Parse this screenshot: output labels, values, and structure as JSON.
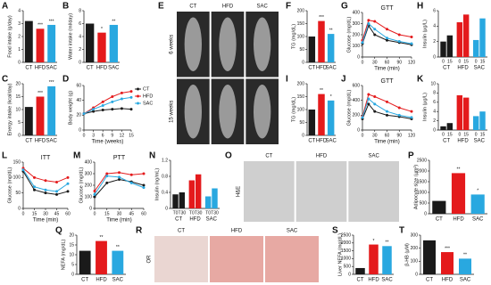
{
  "chart_data": [
    {
      "type": "bar",
      "label": "A",
      "ylabel": "Food intake (g/day)",
      "categories": [
        "CT",
        "HFD",
        "SAC"
      ],
      "values": [
        3.2,
        2.6,
        2.9
      ],
      "stars": [
        null,
        "***",
        "***"
      ],
      "colors": [
        "#1a1a1a",
        "#e41a1c",
        "#29a8e0"
      ],
      "ylim": [
        0,
        4
      ],
      "yticks": [
        0,
        1,
        2,
        3,
        4
      ]
    },
    {
      "type": "bar",
      "label": "B",
      "ylabel": "Water intake (ml/day)",
      "categories": [
        "CT",
        "HFD",
        "SAC"
      ],
      "values": [
        6,
        4.6,
        5.8
      ],
      "stars": [
        null,
        "*",
        "**"
      ],
      "colors": [
        "#1a1a1a",
        "#e41a1c",
        "#29a8e0"
      ],
      "ylim": [
        0,
        8
      ],
      "yticks": [
        0,
        2,
        4,
        6,
        8
      ]
    },
    {
      "type": "image",
      "label": "E",
      "columns": [
        "CT",
        "HFD",
        "SAC"
      ],
      "rows": [
        "6 weeks",
        "15 weeks"
      ]
    },
    {
      "type": "bar",
      "label": "F",
      "ylabel": "TG (mg/dL)",
      "categories": [
        "CT",
        "HFD",
        "SAC"
      ],
      "values": [
        100,
        160,
        110
      ],
      "stars": [
        null,
        "***",
        "**"
      ],
      "colors": [
        "#1a1a1a",
        "#e41a1c",
        "#29a8e0"
      ],
      "ylim": [
        0,
        200
      ],
      "yticks": [
        0,
        50,
        100,
        150,
        200
      ]
    },
    {
      "type": "line",
      "label": "G",
      "title": "GTT",
      "ylabel": "Glucose (mg/dL)",
      "xlabel": "Time (min)",
      "x": [
        0,
        15,
        30,
        60,
        90,
        120
      ],
      "xlim": [
        0,
        120
      ],
      "xticks": [
        0,
        30,
        60,
        90,
        120
      ],
      "ylim": [
        0,
        400
      ],
      "yticks": [
        0,
        100,
        200,
        300,
        400
      ],
      "series": [
        {
          "color": "#1a1a1a",
          "values": [
            120,
            280,
            200,
            150,
            130,
            110
          ]
        },
        {
          "color": "#e41a1c",
          "values": [
            150,
            330,
            320,
            250,
            200,
            180
          ]
        },
        {
          "color": "#29a8e0",
          "values": [
            130,
            300,
            250,
            170,
            140,
            120
          ]
        }
      ]
    },
    {
      "type": "grouped",
      "label": "H",
      "ylabel": "Insulin (μg/L)",
      "groups": [
        "CT",
        "HFD",
        "SAC"
      ],
      "subcategories": [
        "0",
        "15"
      ],
      "values": [
        [
          2,
          2.8
        ],
        [
          4.5,
          5.5
        ],
        [
          2.2,
          5
        ]
      ],
      "colors": [
        "#1a1a1a",
        "#e41a1c",
        "#29a8e0"
      ],
      "ylim": [
        0,
        6
      ],
      "yticks": [
        0,
        2,
        4,
        6
      ]
    },
    {
      "type": "bar",
      "label": "C",
      "ylabel": "Energy intake (kcal/day)",
      "categories": [
        "CT",
        "HFD",
        "SAC"
      ],
      "values": [
        11,
        15,
        19
      ],
      "stars": [
        null,
        "***",
        "***"
      ],
      "colors": [
        "#1a1a1a",
        "#e41a1c",
        "#29a8e0"
      ],
      "ylim": [
        0,
        20
      ],
      "yticks": [
        0,
        5,
        10,
        15,
        20
      ]
    },
    {
      "type": "line",
      "label": "D",
      "ylabel": "Body weight (g)",
      "xlabel": "Time (weeks)",
      "legend": "right",
      "x": [
        0,
        3,
        6,
        9,
        12,
        15
      ],
      "xlim": [
        0,
        15
      ],
      "xticks": [
        0,
        3,
        6,
        9,
        12,
        15
      ],
      "ylim": [
        0,
        60
      ],
      "yticks": [
        0,
        20,
        40,
        60
      ],
      "series": [
        {
          "name": "CT",
          "color": "#1a1a1a",
          "values": [
            22,
            25,
            27,
            28,
            29,
            28
          ]
        },
        {
          "name": "HFD",
          "color": "#e41a1c",
          "values": [
            22,
            30,
            38,
            45,
            50,
            52
          ]
        },
        {
          "name": "SAC",
          "color": "#29a8e0",
          "values": [
            22,
            28,
            33,
            38,
            42,
            44
          ]
        }
      ]
    },
    {
      "type": "bar",
      "label": "I",
      "ylabel": "TG (mg/dL)",
      "categories": [
        "CT",
        "HFD",
        "SAC"
      ],
      "values": [
        100,
        160,
        135
      ],
      "stars": [
        null,
        "**",
        "*"
      ],
      "colors": [
        "#1a1a1a",
        "#e41a1c",
        "#29a8e0"
      ],
      "ylim": [
        0,
        200
      ],
      "yticks": [
        0,
        50,
        100,
        150,
        200
      ]
    },
    {
      "type": "line",
      "label": "J",
      "title": "GTT",
      "ylabel": "Glucose (mg/dL)",
      "xlabel": "Time (min)",
      "x": [
        0,
        15,
        30,
        60,
        90,
        120
      ],
      "xlim": [
        0,
        120
      ],
      "xticks": [
        0,
        30,
        60,
        90,
        120
      ],
      "ylim": [
        0,
        600
      ],
      "yticks": [
        0,
        200,
        400,
        600
      ],
      "series": [
        {
          "color": "#1a1a1a",
          "values": [
            150,
            350,
            250,
            200,
            180,
            150
          ]
        },
        {
          "color": "#e41a1c",
          "values": [
            180,
            480,
            450,
            380,
            300,
            250
          ]
        },
        {
          "color": "#29a8e0",
          "values": [
            170,
            420,
            350,
            250,
            200,
            170
          ]
        }
      ]
    },
    {
      "type": "grouped",
      "label": "K",
      "ylabel": "Insulin (μg/L)",
      "groups": [
        "CT",
        "HFD",
        "SAC"
      ],
      "subcategories": [
        "0",
        "15"
      ],
      "values": [
        [
          0.8,
          1.5
        ],
        [
          7.5,
          7
        ],
        [
          3,
          4
        ]
      ],
      "colors": [
        "#1a1a1a",
        "#e41a1c",
        "#29a8e0"
      ],
      "ylim": [
        0,
        10
      ],
      "yticks": [
        0,
        2,
        4,
        6,
        8,
        10
      ]
    },
    {
      "type": "line",
      "label": "L",
      "title": "ITT",
      "ylabel": "Glucose (mg/dL)",
      "xlabel": "Time (min)",
      "x": [
        0,
        15,
        30,
        45,
        60
      ],
      "xlim": [
        0,
        60
      ],
      "xticks": [
        0,
        15,
        30,
        45,
        60
      ],
      "ylim": [
        0,
        150
      ],
      "yticks": [
        0,
        50,
        100,
        150
      ],
      "series": [
        {
          "color": "#1a1a1a",
          "values": [
            120,
            60,
            50,
            45,
            55
          ]
        },
        {
          "color": "#e41a1c",
          "values": [
            130,
            100,
            90,
            85,
            100
          ]
        },
        {
          "color": "#29a8e0",
          "values": [
            125,
            70,
            60,
            55,
            80
          ]
        }
      ]
    },
    {
      "type": "line",
      "label": "M",
      "title": "PTT",
      "ylabel": "Glucose (mg/dL)",
      "xlabel": "Time (min)",
      "x": [
        0,
        15,
        30,
        45,
        60
      ],
      "xlim": [
        0,
        60
      ],
      "xticks": [
        0,
        15,
        30,
        45,
        60
      ],
      "ylim": [
        0,
        400
      ],
      "yticks": [
        0,
        100,
        200,
        300,
        400
      ],
      "series": [
        {
          "color": "#1a1a1a",
          "values": [
            100,
            220,
            250,
            230,
            200
          ]
        },
        {
          "color": "#e41a1c",
          "values": [
            150,
            300,
            310,
            290,
            300
          ]
        },
        {
          "color": "#29a8e0",
          "values": [
            120,
            280,
            270,
            220,
            180
          ]
        }
      ]
    },
    {
      "type": "grouped",
      "label": "N",
      "ylabel": "Insulin (ng/mL)",
      "groups": [
        "CT",
        "HFD",
        "SAC"
      ],
      "subcategories": [
        "T0",
        "T30"
      ],
      "values": [
        [
          0.35,
          0.4
        ],
        [
          0.7,
          0.85
        ],
        [
          0.3,
          0.5
        ]
      ],
      "colors": [
        "#1a1a1a",
        "#e41a1c",
        "#29a8e0"
      ],
      "ylim": [
        0,
        1.2
      ],
      "yticks": [
        0,
        0.4,
        0.8,
        1.2
      ]
    },
    {
      "type": "image",
      "label": "O",
      "columns": [
        "CT",
        "HFD",
        "SAC"
      ],
      "stain": "H&E"
    },
    {
      "type": "bar",
      "label": "P",
      "ylabel": "Adipocyte size (μm²)",
      "categories": [
        "CT",
        "HFD",
        "SAC"
      ],
      "values": [
        600,
        1900,
        900
      ],
      "stars": [
        null,
        "**",
        "*"
      ],
      "colors": [
        "#1a1a1a",
        "#e41a1c",
        "#29a8e0"
      ],
      "ylim": [
        0,
        2500
      ],
      "yticks": [
        0,
        500,
        1000,
        1500,
        2000,
        2500
      ]
    },
    {
      "type": "bar",
      "label": "Q",
      "ylabel": "NEFA (mg/dL)",
      "categories": [
        "CT",
        "HFD",
        "SAC"
      ],
      "values": [
        12,
        17,
        12
      ],
      "stars": [
        null,
        "**",
        "**"
      ],
      "colors": [
        "#1a1a1a",
        "#e41a1c",
        "#29a8e0"
      ],
      "ylim": [
        0,
        20
      ],
      "yticks": [
        0,
        5,
        10,
        15,
        20
      ]
    },
    {
      "type": "image",
      "label": "R",
      "columns": [
        "CT",
        "HFD",
        "SAC"
      ],
      "stain": "OR"
    },
    {
      "type": "bar",
      "label": "S",
      "ylabel": "Liver NEFA (mg/dL)",
      "categories": [
        "CT",
        "HFD",
        "SAC"
      ],
      "values": [
        400,
        1900,
        1800
      ],
      "stars": [
        null,
        "*",
        "**"
      ],
      "colors": [
        "#1a1a1a",
        "#e41a1c",
        "#29a8e0"
      ],
      "ylim": [
        0,
        2500
      ],
      "yticks": [
        0,
        500,
        1000,
        1500,
        2000,
        2500
      ]
    },
    {
      "type": "bar",
      "label": "T",
      "ylabel": "β-HB (μM)",
      "categories": [
        "CT",
        "HFD",
        "SAC"
      ],
      "values": [
        260,
        170,
        120
      ],
      "stars": [
        null,
        "***",
        "**"
      ],
      "colors": [
        "#1a1a1a",
        "#e41a1c",
        "#29a8e0"
      ],
      "ylim": [
        0,
        300
      ],
      "yticks": [
        0,
        100,
        200,
        300
      ]
    }
  ]
}
